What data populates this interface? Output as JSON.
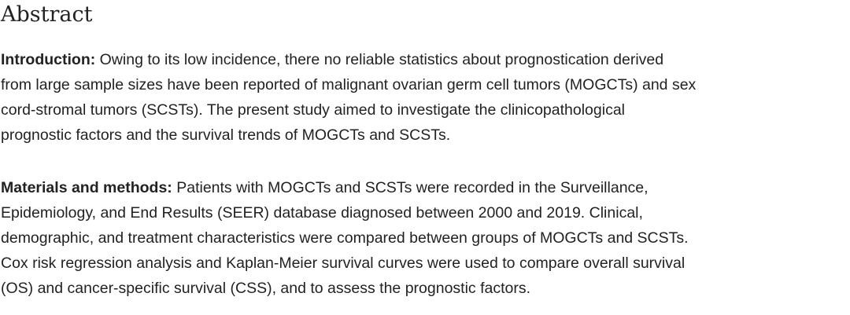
{
  "abstract": {
    "heading": "Abstract",
    "paragraphs": [
      {
        "label": "Introduction:",
        "lines": [
          " Owing to its low incidence, there no reliable statistics about prognostication derived",
          "from large sample sizes have been reported of malignant ovarian germ cell tumors (MOGCTs) and sex",
          "cord-stromal tumors (SCSTs). The present study aimed to investigate the clinicopathological",
          "prognostic factors and the survival trends of MOGCTs and SCSTs."
        ]
      },
      {
        "label": "Materials and methods:",
        "lines": [
          " Patients with MOGCTs and SCSTs were recorded in the Surveillance,",
          "Epidemiology, and End Results (SEER) database diagnosed between 2000 and 2019. Clinical,",
          "demographic, and treatment characteristics were compared between groups of MOGCTs and SCSTs.",
          "Cox risk regression analysis and Kaplan-Meier survival curves were used to compare overall survival",
          "(OS) and cancer-specific survival (CSS), and to assess the prognostic factors."
        ]
      }
    ]
  },
  "colors": {
    "text": "#222222",
    "background": "#ffffff"
  }
}
